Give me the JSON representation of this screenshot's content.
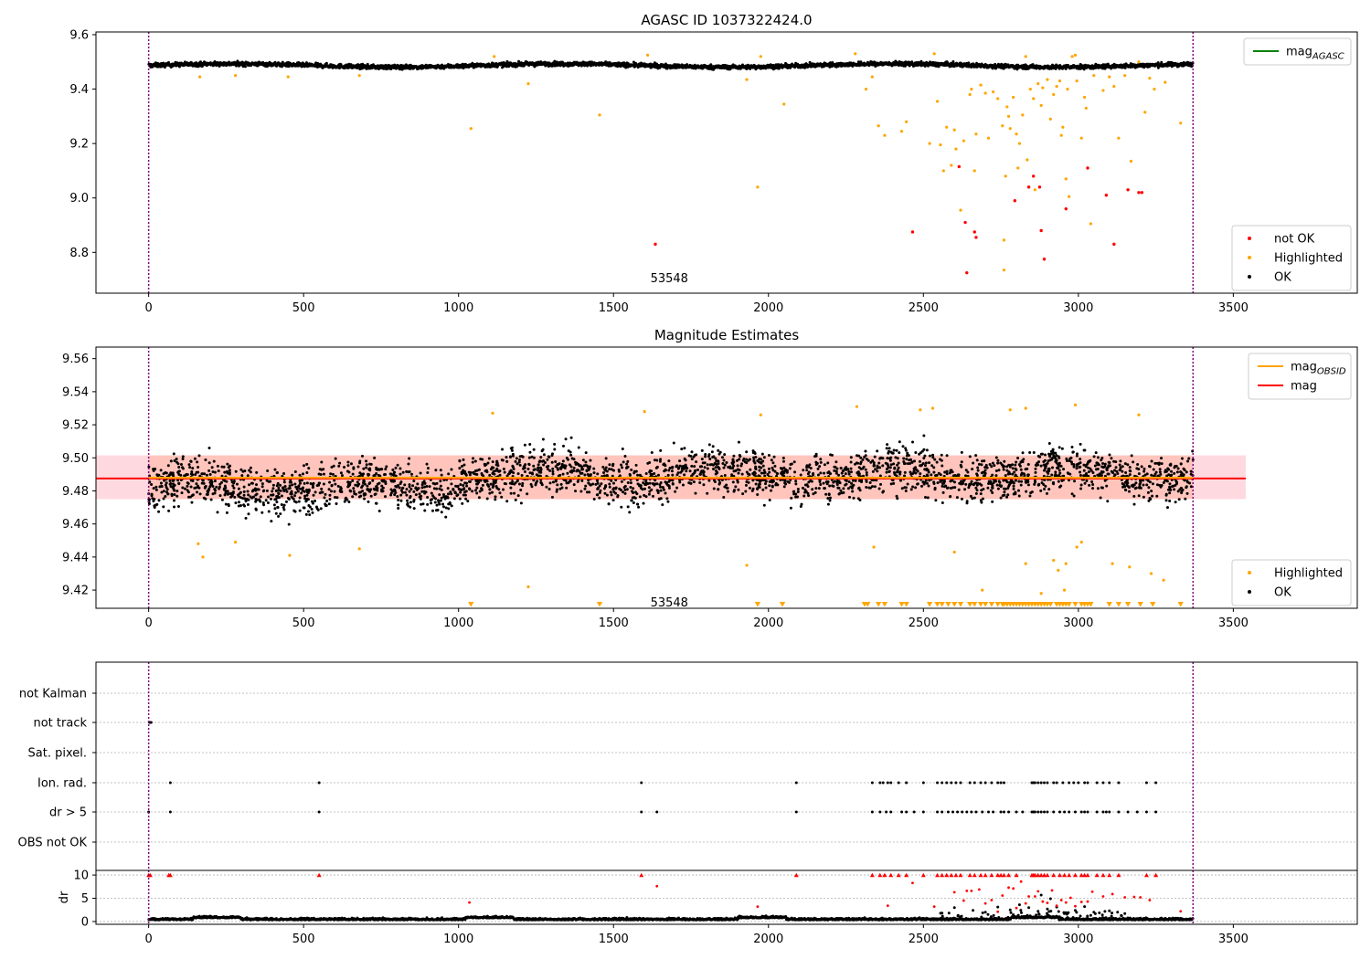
{
  "figure": {
    "background": "#ffffff"
  },
  "colors": {
    "ok": "#000000",
    "highlighted": "#ffa500",
    "not_ok": "#ff0000",
    "mag_agasc": "#008000",
    "mag_obsid": "#ffa500",
    "mag": "#ff0000",
    "band_orange": "#ffa07a",
    "band_pink": "#ffc0cb",
    "boundary": "#800080",
    "dot_marker": "#000000"
  },
  "chart_data": [
    {
      "id": "panel1",
      "type": "scatter",
      "title": "AGASC ID 1037322424.0",
      "xlim": [
        -170,
        3900
      ],
      "ylim": [
        8.65,
        9.61
      ],
      "xticks": [
        0,
        500,
        1000,
        1500,
        2000,
        2500,
        3000,
        3500
      ],
      "yticks": [
        8.8,
        9.0,
        9.2,
        9.4,
        9.6
      ],
      "ytick_labels": [
        "8.8",
        "9.0",
        "9.2",
        "9.4",
        "9.6"
      ],
      "obsid_annotation": {
        "text": "53548",
        "x": 1680,
        "y": 8.69
      },
      "boundaries": [
        0,
        3370
      ],
      "legend_upper": {
        "position": "upper-right",
        "entries": [
          {
            "label": "mag",
            "sub": "AGASC",
            "color_key": "mag_agasc",
            "marker": "line"
          }
        ]
      },
      "legend_lower": {
        "position": "lower-right",
        "entries": [
          {
            "label": "not OK",
            "color_key": "not_ok",
            "marker": "dot"
          },
          {
            "label": "Highlighted",
            "color_key": "highlighted",
            "marker": "dot"
          },
          {
            "label": "OK",
            "color_key": "ok",
            "marker": "dot"
          }
        ]
      },
      "ok_band": {
        "x_range": [
          0,
          3370
        ],
        "center": 9.487,
        "spread": 0.012,
        "wave_amplitude": 0.006
      },
      "highlighted_points": [
        [
          165,
          9.445
        ],
        [
          280,
          9.45
        ],
        [
          450,
          9.445
        ],
        [
          680,
          9.45
        ],
        [
          1040,
          9.255
        ],
        [
          1115,
          9.52
        ],
        [
          1225,
          9.42
        ],
        [
          1455,
          9.305
        ],
        [
          1610,
          9.525
        ],
        [
          1930,
          9.435
        ],
        [
          1965,
          9.04
        ],
        [
          1975,
          9.52
        ],
        [
          2050,
          9.345
        ],
        [
          2280,
          9.53
        ],
        [
          2315,
          9.4
        ],
        [
          2335,
          9.445
        ],
        [
          2355,
          9.265
        ],
        [
          2375,
          9.23
        ],
        [
          2430,
          9.245
        ],
        [
          2445,
          9.28
        ],
        [
          2520,
          9.2
        ],
        [
          2535,
          9.53
        ],
        [
          2545,
          9.355
        ],
        [
          2555,
          9.195
        ],
        [
          2565,
          9.1
        ],
        [
          2575,
          9.26
        ],
        [
          2590,
          9.12
        ],
        [
          2600,
          9.25
        ],
        [
          2605,
          9.18
        ],
        [
          2620,
          8.955
        ],
        [
          2630,
          9.21
        ],
        [
          2650,
          9.38
        ],
        [
          2655,
          9.4
        ],
        [
          2665,
          9.1
        ],
        [
          2670,
          9.235
        ],
        [
          2685,
          9.415
        ],
        [
          2700,
          9.385
        ],
        [
          2710,
          9.22
        ],
        [
          2725,
          9.39
        ],
        [
          2740,
          9.365
        ],
        [
          2755,
          9.265
        ],
        [
          2760,
          8.845
        ],
        [
          2765,
          9.08
        ],
        [
          2770,
          9.335
        ],
        [
          2775,
          9.3
        ],
        [
          2780,
          9.255
        ],
        [
          2790,
          9.37
        ],
        [
          2800,
          9.235
        ],
        [
          2805,
          9.11
        ],
        [
          2810,
          9.2
        ],
        [
          2820,
          9.305
        ],
        [
          2830,
          9.52
        ],
        [
          2835,
          9.14
        ],
        [
          2845,
          9.4
        ],
        [
          2855,
          9.365
        ],
        [
          2860,
          9.03
        ],
        [
          2870,
          9.42
        ],
        [
          2880,
          9.34
        ],
        [
          2885,
          9.405
        ],
        [
          2900,
          9.435
        ],
        [
          2910,
          9.29
        ],
        [
          2920,
          9.38
        ],
        [
          2930,
          9.41
        ],
        [
          2940,
          9.43
        ],
        [
          2945,
          9.23
        ],
        [
          2950,
          9.26
        ],
        [
          2960,
          9.07
        ],
        [
          2965,
          9.4
        ],
        [
          2970,
          9.005
        ],
        [
          2980,
          9.52
        ],
        [
          2990,
          9.525
        ],
        [
          2995,
          9.43
        ],
        [
          3010,
          9.22
        ],
        [
          3020,
          9.37
        ],
        [
          3025,
          9.33
        ],
        [
          3040,
          8.905
        ],
        [
          3050,
          9.45
        ],
        [
          3080,
          9.395
        ],
        [
          3100,
          9.445
        ],
        [
          3115,
          9.41
        ],
        [
          3130,
          9.22
        ],
        [
          3150,
          9.45
        ],
        [
          3170,
          9.135
        ],
        [
          3195,
          9.5
        ],
        [
          3215,
          9.315
        ],
        [
          3230,
          9.44
        ],
        [
          3245,
          9.4
        ],
        [
          3280,
          9.425
        ],
        [
          3330,
          9.275
        ],
        [
          2760,
          8.735
        ]
      ],
      "not_ok_points": [
        [
          1635,
          8.83
        ],
        [
          2465,
          8.875
        ],
        [
          2615,
          9.115
        ],
        [
          2635,
          8.91
        ],
        [
          2640,
          8.725
        ],
        [
          2665,
          8.875
        ],
        [
          2670,
          8.855
        ],
        [
          2795,
          8.99
        ],
        [
          2840,
          9.04
        ],
        [
          2855,
          9.08
        ],
        [
          2875,
          9.04
        ],
        [
          2880,
          8.88
        ],
        [
          2890,
          8.775
        ],
        [
          2960,
          8.96
        ],
        [
          3030,
          9.11
        ],
        [
          3090,
          9.01
        ],
        [
          3115,
          8.83
        ],
        [
          3160,
          9.03
        ],
        [
          3195,
          9.02
        ],
        [
          3205,
          9.02
        ]
      ]
    },
    {
      "id": "panel2",
      "type": "scatter",
      "title": "Magnitude Estimates",
      "xlim": [
        -170,
        3900
      ],
      "ylim": [
        9.409,
        9.567
      ],
      "xticks": [
        0,
        500,
        1000,
        1500,
        2000,
        2500,
        3000,
        3500
      ],
      "yticks": [
        9.42,
        9.44,
        9.46,
        9.48,
        9.5,
        9.52,
        9.54,
        9.56
      ],
      "ytick_labels": [
        "9.42",
        "9.44",
        "9.46",
        "9.48",
        "9.50",
        "9.52",
        "9.54",
        "9.56"
      ],
      "obsid_annotation": {
        "text": "53548",
        "x": 1680,
        "y": 9.41
      },
      "boundaries": [
        0,
        3370
      ],
      "mag_line": {
        "value": 9.4875,
        "x_range": [
          -170,
          3540
        ],
        "band_low": 9.475,
        "band_high": 9.5015
      },
      "mag_obsid_line": {
        "value": 9.488,
        "x_range": [
          0,
          3370
        ],
        "band_low": 9.475,
        "band_high": 9.5015
      },
      "legend_upper": {
        "position": "upper-right",
        "entries": [
          {
            "label": "mag",
            "sub": "OBSID",
            "color_key": "mag_obsid",
            "marker": "line"
          },
          {
            "label": "mag",
            "sub": "",
            "color_key": "mag",
            "marker": "line"
          }
        ]
      },
      "legend_lower": {
        "position": "lower-right",
        "entries": [
          {
            "label": "Highlighted",
            "color_key": "highlighted",
            "marker": "dot"
          },
          {
            "label": "OK",
            "color_key": "ok",
            "marker": "dot"
          }
        ]
      },
      "ok_cloud": {
        "x_range": [
          0,
          3370
        ],
        "center": 9.488,
        "spread": 0.01
      },
      "highlighted_points": [
        [
          160,
          9.448
        ],
        [
          175,
          9.44
        ],
        [
          280,
          9.449
        ],
        [
          455,
          9.441
        ],
        [
          680,
          9.445
        ],
        [
          1110,
          9.527
        ],
        [
          1225,
          9.422
        ],
        [
          1600,
          9.528
        ],
        [
          1930,
          9.435
        ],
        [
          1975,
          9.526
        ],
        [
          2285,
          9.531
        ],
        [
          2340,
          9.446
        ],
        [
          2490,
          9.529
        ],
        [
          2530,
          9.53
        ],
        [
          2600,
          9.443
        ],
        [
          2690,
          9.42
        ],
        [
          2780,
          9.529
        ],
        [
          2830,
          9.53
        ],
        [
          2830,
          9.436
        ],
        [
          2880,
          9.418
        ],
        [
          2920,
          9.438
        ],
        [
          2935,
          9.432
        ],
        [
          2955,
          9.42
        ],
        [
          2960,
          9.436
        ],
        [
          2990,
          9.532
        ],
        [
          2995,
          9.446
        ],
        [
          3010,
          9.449
        ],
        [
          3110,
          9.436
        ],
        [
          3165,
          9.434
        ],
        [
          3195,
          9.526
        ],
        [
          3235,
          9.43
        ],
        [
          3275,
          9.426
        ]
      ],
      "offscale_markers_x": [
        1040,
        1455,
        1965,
        2045,
        2310,
        2320,
        2355,
        2375,
        2430,
        2445,
        2520,
        2545,
        2560,
        2580,
        2600,
        2620,
        2650,
        2665,
        2685,
        2700,
        2720,
        2740,
        2755,
        2760,
        2770,
        2780,
        2790,
        2800,
        2810,
        2820,
        2830,
        2840,
        2850,
        2860,
        2870,
        2880,
        2890,
        2900,
        2910,
        2930,
        2940,
        2950,
        2960,
        2970,
        2990,
        3010,
        3020,
        3030,
        3040,
        3100,
        3130,
        3160,
        3200,
        3240,
        3330
      ]
    },
    {
      "id": "panel3",
      "type": "scatter",
      "title": "",
      "xlim": [
        -170,
        3900
      ],
      "categories": [
        "not Kalman",
        "not track",
        "Sat. pixel.",
        "Ion. rad.",
        "dr > 5",
        "OBS not OK"
      ],
      "boundaries": [
        0,
        3370
      ],
      "rows": {
        "not track": [
          3,
          8
        ],
        "Ion. rad.": [
          70,
          550,
          1590,
          2090,
          2335,
          2360,
          2370,
          2385,
          2395,
          2420,
          2445,
          2500,
          2545,
          2560,
          2575,
          2590,
          2605,
          2620,
          2650,
          2665,
          2685,
          2700,
          2720,
          2740,
          2750,
          2760,
          2850,
          2855,
          2860,
          2870,
          2880,
          2890,
          2900,
          2920,
          2930,
          2950,
          2970,
          2985,
          3000,
          3020,
          3030,
          3060,
          3080,
          3100,
          3130,
          3220,
          3250
        ],
        "dr > 5": [
          0,
          70,
          550,
          1590,
          1640,
          2090,
          2335,
          2360,
          2380,
          2395,
          2430,
          2445,
          2470,
          2500,
          2545,
          2560,
          2580,
          2595,
          2610,
          2625,
          2640,
          2655,
          2670,
          2690,
          2710,
          2725,
          2750,
          2760,
          2775,
          2800,
          2820,
          2850,
          2855,
          2860,
          2870,
          2880,
          2890,
          2900,
          2920,
          2940,
          2955,
          2970,
          2990,
          3010,
          3020,
          3030,
          3060,
          3080,
          3090,
          3100,
          3130,
          3160,
          3190,
          3220,
          3250
        ]
      }
    },
    {
      "id": "panel4",
      "type": "scatter",
      "ylabel": "dr",
      "xlim": [
        -170,
        3900
      ],
      "ylim": [
        -0.6,
        11
      ],
      "xticks": [
        0,
        500,
        1000,
        1500,
        2000,
        2500,
        3000,
        3500
      ],
      "yticks": [
        0,
        5,
        10
      ],
      "ytick_labels": [
        "0",
        "5",
        "10"
      ],
      "boundaries": [
        0,
        3370
      ],
      "capped_markers_x": [
        0,
        5,
        65,
        70,
        550,
        1590,
        2090,
        2335,
        2360,
        2375,
        2395,
        2420,
        2445,
        2500,
        2545,
        2560,
        2575,
        2590,
        2605,
        2620,
        2650,
        2665,
        2685,
        2700,
        2720,
        2740,
        2750,
        2760,
        2775,
        2800,
        2850,
        2855,
        2860,
        2870,
        2880,
        2890,
        2900,
        2920,
        2940,
        2955,
        2970,
        2990,
        3010,
        3020,
        3030,
        3060,
        3080,
        3100,
        3130,
        3220,
        3250
      ],
      "red_points": [
        [
          1035,
          4.1
        ],
        [
          1640,
          7.6
        ],
        [
          1965,
          3.2
        ],
        [
          2385,
          3.4
        ],
        [
          2465,
          8.3
        ],
        [
          2535,
          3.2
        ],
        [
          2600,
          6.3
        ],
        [
          2630,
          4.5
        ],
        [
          2640,
          6.6
        ],
        [
          2655,
          6.6
        ],
        [
          2680,
          6.9
        ],
        [
          2700,
          3.9
        ],
        [
          2720,
          4.6
        ],
        [
          2740,
          2.1
        ],
        [
          2755,
          5.6
        ],
        [
          2775,
          7.3
        ],
        [
          2790,
          7.1
        ],
        [
          2800,
          2.9
        ],
        [
          2815,
          8.6
        ],
        [
          2830,
          3.9
        ],
        [
          2840,
          5.4
        ],
        [
          2860,
          5.4
        ],
        [
          2870,
          6.5
        ],
        [
          2885,
          4.3
        ],
        [
          2900,
          4.0
        ],
        [
          2915,
          6.7
        ],
        [
          2930,
          3.4
        ],
        [
          2945,
          4.6
        ],
        [
          2960,
          4.1
        ],
        [
          2975,
          5.1
        ],
        [
          2990,
          3.3
        ],
        [
          3010,
          4.2
        ],
        [
          3030,
          4.3
        ],
        [
          3045,
          6.4
        ],
        [
          3080,
          5.4
        ],
        [
          3110,
          5.9
        ],
        [
          3150,
          5.2
        ],
        [
          3180,
          5.3
        ],
        [
          3200,
          5.2
        ],
        [
          3230,
          4.6
        ],
        [
          3330,
          2.2
        ]
      ],
      "black_points": [
        [
          2560,
          1.8
        ],
        [
          2600,
          3.0
        ],
        [
          2660,
          2.4
        ],
        [
          2700,
          2.0
        ],
        [
          2740,
          3.1
        ],
        [
          2780,
          2.5
        ],
        [
          2810,
          3.6
        ],
        [
          2840,
          3.0
        ],
        [
          2870,
          2.2
        ],
        [
          2900,
          2.7
        ],
        [
          2930,
          3.1
        ],
        [
          2960,
          1.9
        ],
        [
          2990,
          2.4
        ],
        [
          3020,
          3.2
        ],
        [
          3050,
          2.0
        ],
        [
          3100,
          2.3
        ],
        [
          3150,
          1.7
        ],
        [
          2880,
          5.7
        ],
        [
          2910,
          4.9
        ]
      ]
    }
  ]
}
